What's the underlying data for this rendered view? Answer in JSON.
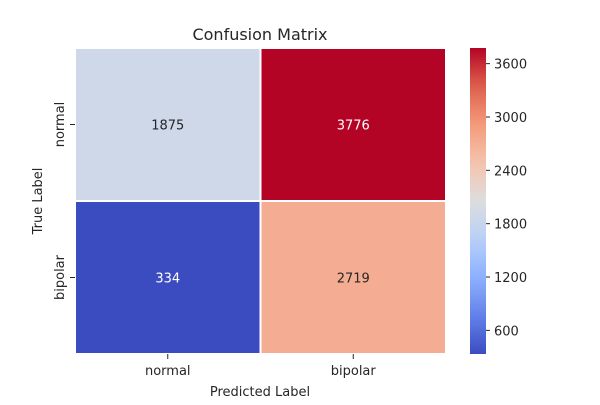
{
  "chart_data": {
    "type": "heatmap",
    "title": "Confusion Matrix",
    "xlabel": "Predicted Label",
    "ylabel": "True Label",
    "x_categories": [
      "normal",
      "bipolar"
    ],
    "y_categories": [
      "normal",
      "bipolar"
    ],
    "values": [
      [
        1875,
        3776
      ],
      [
        334,
        2719
      ]
    ],
    "colormap": "coolwarm",
    "color_range": [
      334,
      3776
    ],
    "colorbar_ticks": [
      600,
      1200,
      1800,
      2400,
      3000,
      3600
    ],
    "cell_border_color": "#ffffff",
    "legend": "colorbar-right"
  }
}
